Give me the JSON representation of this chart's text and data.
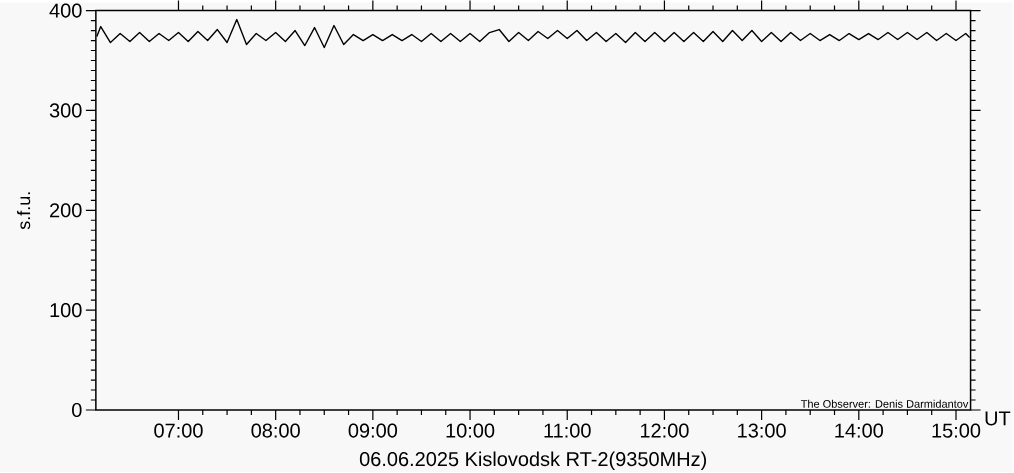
{
  "chart_data": {
    "type": "line",
    "title": "06.06.2025 Kislovodsk RT-2(9350MHz)",
    "xlabel": "UT",
    "ylabel": "s.f.u.",
    "annotations": [
      "The Observer: Denis Darmidantov"
    ],
    "xlim": [
      6.15,
      15.15
    ],
    "ylim": [
      0,
      400
    ],
    "xticks": [
      {
        "value": 7,
        "label": "07:00"
      },
      {
        "value": 8,
        "label": "08:00"
      },
      {
        "value": 9,
        "label": "09:00"
      },
      {
        "value": 10,
        "label": "10:00"
      },
      {
        "value": 11,
        "label": "11:00"
      },
      {
        "value": 12,
        "label": "12:00"
      },
      {
        "value": 13,
        "label": "13:00"
      },
      {
        "value": 14,
        "label": "14:00"
      },
      {
        "value": 15,
        "label": "15:00"
      }
    ],
    "yticks": [
      0,
      100,
      200,
      300,
      400
    ],
    "series": [
      {
        "color": "#000000",
        "x": [
          6.16,
          6.2,
          6.3,
          6.4,
          6.5,
          6.6,
          6.7,
          6.8,
          6.9,
          7.0,
          7.1,
          7.2,
          7.3,
          7.4,
          7.5,
          7.6,
          7.7,
          7.8,
          7.9,
          8.0,
          8.1,
          8.2,
          8.3,
          8.4,
          8.5,
          8.6,
          8.7,
          8.8,
          8.9,
          9.0,
          9.1,
          9.2,
          9.3,
          9.4,
          9.5,
          9.6,
          9.7,
          9.8,
          9.9,
          10.0,
          10.1,
          10.2,
          10.3,
          10.4,
          10.5,
          10.6,
          10.7,
          10.8,
          10.9,
          11.0,
          11.1,
          11.2,
          11.3,
          11.4,
          11.5,
          11.6,
          11.7,
          11.8,
          11.9,
          12.0,
          12.1,
          12.2,
          12.3,
          12.4,
          12.5,
          12.6,
          12.7,
          12.8,
          12.9,
          13.0,
          13.1,
          13.2,
          13.3,
          13.4,
          13.5,
          13.6,
          13.7,
          13.8,
          13.9,
          14.0,
          14.1,
          14.2,
          14.3,
          14.4,
          14.5,
          14.6,
          14.7,
          14.8,
          14.9,
          15.0,
          15.1,
          15.14
        ],
        "values": [
          374,
          384,
          368,
          377,
          369,
          378,
          369,
          377,
          370,
          378,
          369,
          379,
          370,
          381,
          368,
          391,
          366,
          377,
          370,
          378,
          369,
          380,
          365,
          383,
          363,
          385,
          366,
          376,
          370,
          376,
          370,
          376,
          370,
          376,
          369,
          377,
          369,
          377,
          369,
          377,
          369,
          378,
          381,
          369,
          378,
          370,
          379,
          372,
          380,
          372,
          380,
          370,
          378,
          369,
          377,
          368,
          378,
          369,
          378,
          369,
          378,
          369,
          378,
          369,
          379,
          369,
          380,
          370,
          380,
          369,
          378,
          369,
          378,
          370,
          377,
          370,
          376,
          370,
          377,
          371,
          377,
          371,
          378,
          371,
          378,
          371,
          378,
          370,
          377,
          370,
          377,
          373
        ]
      }
    ]
  }
}
